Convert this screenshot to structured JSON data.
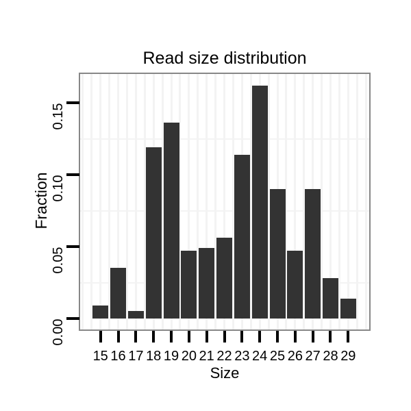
{
  "chart_data": {
    "type": "bar",
    "title": "Read size distribution",
    "xlabel": "Size",
    "ylabel": "Fraction",
    "categories": [
      15,
      16,
      17,
      18,
      19,
      20,
      21,
      22,
      23,
      24,
      25,
      26,
      27,
      28,
      29
    ],
    "values": [
      0.009,
      0.035,
      0.005,
      0.119,
      0.136,
      0.047,
      0.049,
      0.056,
      0.114,
      0.162,
      0.09,
      0.047,
      0.09,
      0.028,
      0.014
    ],
    "y_ticks": [
      {
        "label": "0.00",
        "value": 0.0
      },
      {
        "label": "0.05",
        "value": 0.05
      },
      {
        "label": "0.10",
        "value": 0.1
      },
      {
        "label": "0.15",
        "value": 0.15
      }
    ],
    "y_minor_gridlines": [
      0.025,
      0.075,
      0.125
    ],
    "xlim": [
      13.85,
      30.2
    ],
    "ylim": [
      -0.008,
      0.17
    ],
    "grid": "minor-only",
    "legend": "none",
    "bar_width_fraction": 0.9,
    "colors": {
      "bar": "#333333",
      "grid": "#f3f3f3",
      "panel_border": "#878787",
      "background": "#ffffff",
      "text": "#000000",
      "tick": "#000000"
    }
  }
}
